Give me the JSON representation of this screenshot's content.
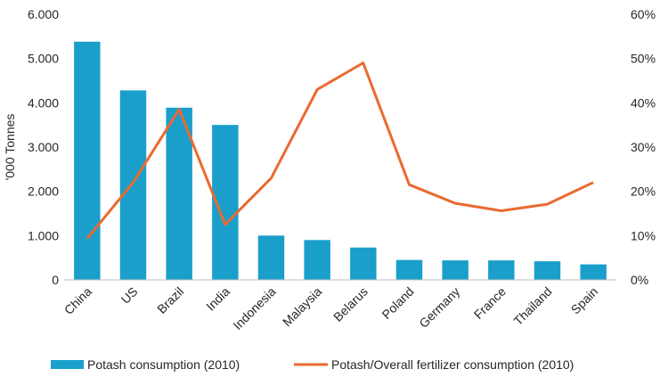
{
  "chart_data": {
    "type": "bar",
    "categories": [
      "China",
      "US",
      "Brazil",
      "India",
      "Indonesia",
      "Malaysia",
      "Belarus",
      "Poland",
      "Germany",
      "France",
      "Thailand",
      "Spain"
    ],
    "series": [
      {
        "name": "Potash consumption (2010)",
        "type": "bar",
        "axis": "left",
        "values": [
          5380,
          4280,
          3890,
          3500,
          1000,
          900,
          730,
          450,
          440,
          440,
          420,
          350
        ]
      },
      {
        "name": "Potash/Overall fertilizer consumption (2010)",
        "type": "line",
        "axis": "right",
        "values": [
          9.3,
          22,
          38.5,
          12.5,
          23,
          43,
          49,
          21.5,
          17.3,
          15.6,
          17.1,
          22
        ]
      }
    ],
    "ylabel": "'000 Tonnes",
    "ylim": [
      0,
      6000
    ],
    "yticks": [
      "0",
      "1.000",
      "2.000",
      "3.000",
      "4.000",
      "5.000",
      "6.000"
    ],
    "y2lim": [
      0,
      60
    ],
    "y2ticks": [
      "0%",
      "10%",
      "20%",
      "30%",
      "40%",
      "50%",
      "60%"
    ],
    "grid": false,
    "legend": "bottom",
    "colors": {
      "bar": "#1a9fcb",
      "line": "#ea6a30",
      "axis": "#bfbfbf",
      "text": "#262626"
    }
  }
}
